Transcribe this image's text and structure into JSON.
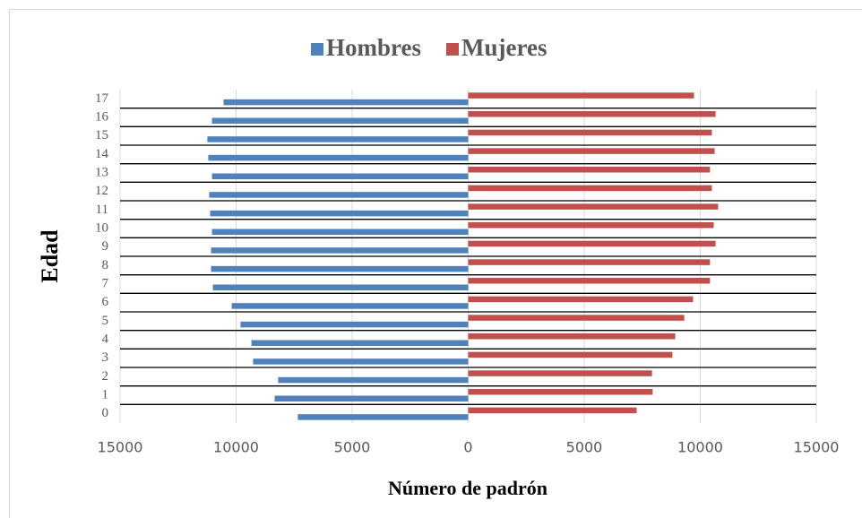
{
  "chart_data": {
    "type": "pyramid",
    "xlabel": "Número de padrón",
    "ylabel": "Edad",
    "categories": [
      "0",
      "1",
      "2",
      "3",
      "4",
      "5",
      "6",
      "7",
      "8",
      "9",
      "10",
      "11",
      "12",
      "13",
      "14",
      "15",
      "16",
      "17"
    ],
    "series": [
      {
        "name": "Hombres",
        "color": "#4f81bd",
        "values": [
          -7340,
          -8340,
          -8190,
          -9270,
          -9340,
          -9810,
          -10190,
          -11000,
          -11080,
          -11080,
          -11040,
          -11120,
          -11160,
          -11040,
          -11200,
          -11240,
          -11040,
          -10540
        ]
      },
      {
        "name": "Mujeres",
        "color": "#c0504d",
        "values": [
          7260,
          7950,
          7920,
          8800,
          8920,
          9310,
          9690,
          10420,
          10420,
          10660,
          10580,
          10770,
          10500,
          10420,
          10620,
          10500,
          10660,
          9730
        ]
      }
    ],
    "xlim": [
      -15000,
      15000
    ],
    "xticks": [
      {
        "value": -15000,
        "label": "15000"
      },
      {
        "value": -10000,
        "label": "10000"
      },
      {
        "value": -5000,
        "label": "5000"
      },
      0,
      5000,
      10000,
      15000
    ],
    "grid": true,
    "legend": "top"
  }
}
